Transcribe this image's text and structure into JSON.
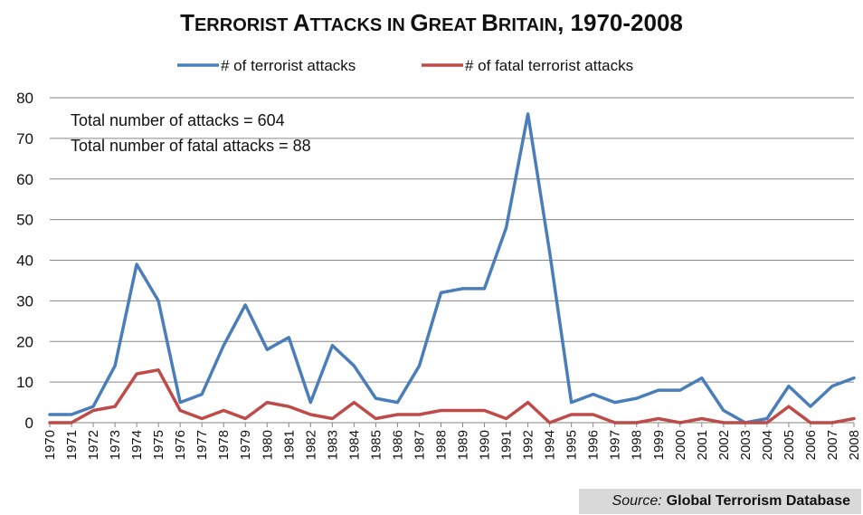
{
  "chart_data": {
    "type": "line",
    "title_parts": [
      {
        "text": "T",
        "small": false
      },
      {
        "text": "ERRORIST ",
        "small": true
      },
      {
        "text": "A",
        "small": false
      },
      {
        "text": "TTACKS IN ",
        "small": true
      },
      {
        "text": "G",
        "small": false
      },
      {
        "text": "REAT ",
        "small": true
      },
      {
        "text": "B",
        "small": false
      },
      {
        "text": "RITAIN",
        "small": true
      },
      {
        "text": ", 1970-2008",
        "small": false
      }
    ],
    "categories": [
      "1970",
      "1971",
      "1972",
      "1973",
      "1974",
      "1975",
      "1976",
      "1977",
      "1978",
      "1979",
      "1980",
      "1981",
      "1982",
      "1983",
      "1984",
      "1985",
      "1986",
      "1987",
      "1988",
      "1989",
      "1990",
      "1991",
      "1992",
      "1994",
      "1995",
      "1996",
      "1997",
      "1998",
      "1999",
      "2000",
      "2001",
      "2002",
      "2003",
      "2004",
      "2005",
      "2006",
      "2007",
      "2008"
    ],
    "series": [
      {
        "name": "# of terrorist attacks",
        "color": "#4a7ebb",
        "values": [
          2,
          2,
          4,
          14,
          39,
          30,
          5,
          7,
          19,
          29,
          18,
          21,
          5,
          19,
          14,
          6,
          5,
          14,
          32,
          33,
          33,
          48,
          76,
          42,
          5,
          7,
          5,
          6,
          8,
          8,
          11,
          3,
          0,
          1,
          9,
          4,
          9,
          11
        ]
      },
      {
        "name": "# of fatal terrorist attacks",
        "color": "#be4b48",
        "values": [
          0,
          0,
          3,
          4,
          12,
          13,
          3,
          1,
          3,
          1,
          5,
          4,
          2,
          1,
          5,
          1,
          2,
          2,
          3,
          3,
          3,
          1,
          5,
          0,
          2,
          2,
          0,
          0,
          1,
          0,
          1,
          0,
          0,
          0,
          4,
          0,
          0,
          1
        ]
      }
    ],
    "ylim": [
      0,
      80
    ],
    "yticks": [
      0,
      10,
      20,
      30,
      40,
      50,
      60,
      70,
      80
    ],
    "grid": true,
    "legend_position": "top",
    "annotations": [
      "Total number of attacks = 604",
      "Total number of fatal attacks = 88"
    ]
  },
  "source": {
    "label": "Source:",
    "value": "Global Terrorism Database"
  }
}
